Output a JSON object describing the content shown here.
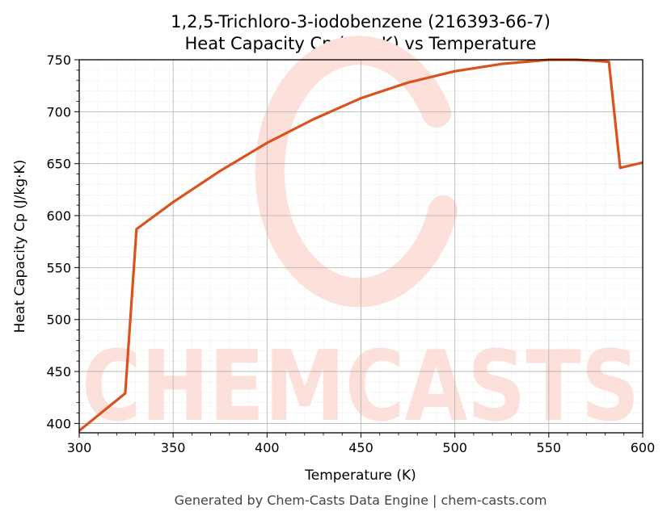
{
  "chart_data": {
    "type": "line",
    "title": "1,2,5-Trichloro-3-iodobenzene (216393-66-7)",
    "subtitle": "Heat Capacity Cp (J/kg·K) vs Temperature",
    "xlabel": "Temperature (K)",
    "ylabel": "Heat Capacity Cp (J/kg·K)",
    "xlim": [
      300,
      600
    ],
    "ylim": [
      391,
      750
    ],
    "xticks": [
      300,
      350,
      400,
      450,
      500,
      550,
      600
    ],
    "yticks": [
      400,
      450,
      500,
      550,
      600,
      650,
      700,
      750
    ],
    "grid": true,
    "line_color": "#d9531e",
    "series": [
      {
        "x": [
          300,
          324.5,
          330.5,
          350,
          375,
          400,
          425,
          450,
          475,
          500,
          525,
          550,
          565,
          575,
          582,
          588,
          600
        ],
        "values": [
          393,
          429,
          587,
          613,
          643,
          670,
          693,
          713,
          728,
          739,
          746,
          750,
          750,
          749,
          748,
          646,
          651
        ]
      }
    ]
  },
  "watermark": {
    "text": "CHEMCASTS",
    "color": "#fde0da"
  },
  "footer": "Generated by Chem-Casts Data Engine | chem-casts.com"
}
